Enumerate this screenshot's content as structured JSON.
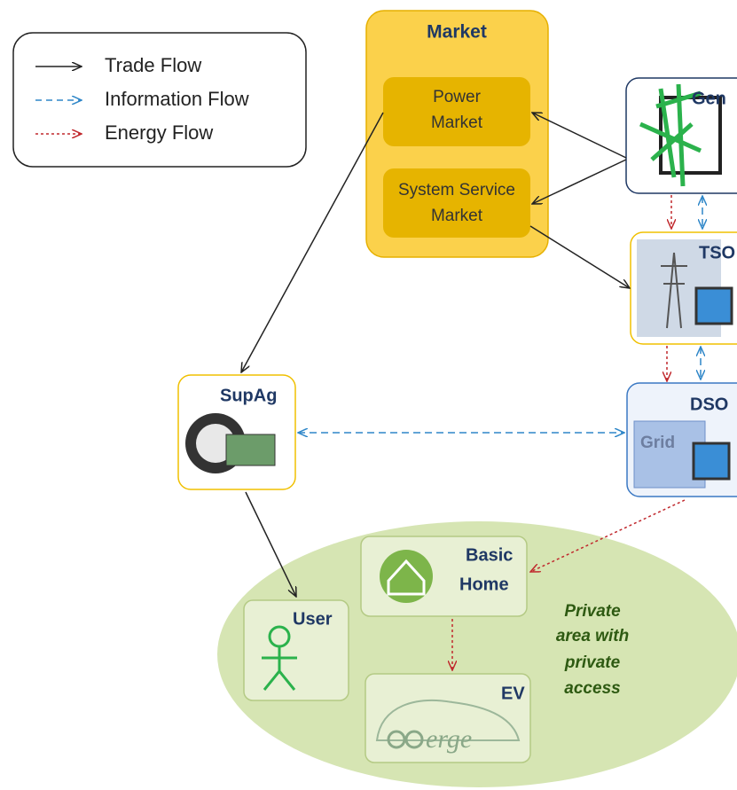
{
  "legend": [
    {
      "label": "Trade Flow"
    },
    {
      "label": "Information Flow"
    },
    {
      "label": "Energy Flow"
    }
  ],
  "market": {
    "title": "Market",
    "power_market": [
      "Power",
      "Market"
    ],
    "system_service_market": [
      "System Service",
      "Market"
    ]
  },
  "actors": {
    "gen": "Gen",
    "tso": "TSO",
    "dso": "DSO",
    "grid": "Grid",
    "supag": "SupAg",
    "basic_home": [
      "Basic",
      "Home"
    ],
    "user": "User",
    "ev": "EV",
    "ev_logo": "erge"
  },
  "private_area": [
    "Private",
    "area with",
    "private",
    "access"
  ]
}
